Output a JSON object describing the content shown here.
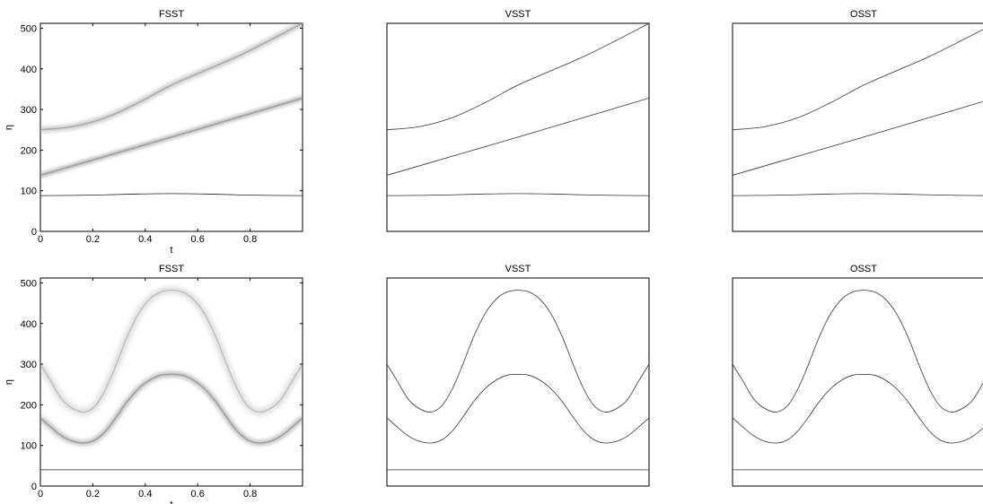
{
  "chart_data": [
    {
      "type": "line",
      "title": "FSST",
      "xlabel": "t",
      "ylabel": "η",
      "xlim": [
        0,
        1
      ],
      "ylim": [
        0,
        512
      ],
      "xticks": [
        "0",
        "0.2",
        "0.4",
        "0.6",
        "0.8"
      ],
      "yticks": [
        "0",
        "100",
        "200",
        "300",
        "400",
        "500"
      ],
      "show_x_ticks": true,
      "show_y_ticks": true,
      "grid": false,
      "series": [
        {
          "x": [
            0,
            0.125,
            0.25,
            0.375,
            0.5,
            0.625,
            0.75,
            0.875,
            1.0
          ],
          "y": [
            250,
            258,
            280,
            317,
            360,
            395,
            430,
            470,
            512
          ],
          "tone": "#9a9a9a",
          "blur": 2.2,
          "width": 1.4
        },
        {
          "x": [
            0,
            0.25,
            0.5,
            0.75,
            1.0
          ],
          "y": [
            138,
            185,
            232,
            280,
            328
          ],
          "tone": "#8f8f8f",
          "blur": 1.6,
          "width": 1.4
        },
        {
          "x": [
            0,
            0.125,
            0.25,
            0.375,
            0.5,
            0.625,
            0.75,
            0.875,
            1.0
          ],
          "y": [
            88,
            88.5,
            90,
            92,
            93,
            92,
            90,
            88.5,
            88
          ],
          "tone": "#202020",
          "blur": 0,
          "width": 0.8
        }
      ]
    },
    {
      "type": "line",
      "title": "VSST",
      "xlabel": "",
      "ylabel": "",
      "xlim": [
        0,
        1
      ],
      "ylim": [
        0,
        512
      ],
      "xticks": [],
      "yticks": [],
      "show_x_ticks": false,
      "show_y_ticks": false,
      "grid": false,
      "series": [
        {
          "x": [
            0,
            0.125,
            0.25,
            0.375,
            0.5,
            0.625,
            0.75,
            0.875,
            1.0
          ],
          "y": [
            250,
            258,
            280,
            317,
            360,
            395,
            430,
            470,
            512
          ],
          "tone": "#333333",
          "blur": 0,
          "width": 0.8
        },
        {
          "x": [
            0,
            0.25,
            0.5,
            0.75,
            1.0
          ],
          "y": [
            138,
            185,
            232,
            280,
            328
          ],
          "tone": "#333333",
          "blur": 0,
          "width": 0.8
        },
        {
          "x": [
            0,
            0.125,
            0.25,
            0.375,
            0.5,
            0.625,
            0.75,
            0.875,
            1.0
          ],
          "y": [
            88,
            88.5,
            90,
            92,
            93,
            92,
            90,
            88.5,
            88
          ],
          "tone": "#333333",
          "blur": 0,
          "width": 0.8
        }
      ]
    },
    {
      "type": "line",
      "title": "OSST",
      "xlabel": "",
      "ylabel": "",
      "xlim": [
        0,
        1
      ],
      "ylim": [
        0,
        512
      ],
      "xticks": [],
      "yticks": [],
      "show_x_ticks": false,
      "show_y_ticks": false,
      "grid": false,
      "series": [
        {
          "x": [
            0,
            0.125,
            0.25,
            0.375,
            0.5,
            0.625,
            0.75,
            0.875,
            1.0
          ],
          "y": [
            250,
            258,
            280,
            317,
            360,
            395,
            430,
            470,
            512
          ],
          "tone": "#333333",
          "blur": 0,
          "width": 0.8
        },
        {
          "x": [
            0,
            0.25,
            0.5,
            0.75,
            1.0
          ],
          "y": [
            138,
            185,
            232,
            280,
            328
          ],
          "tone": "#333333",
          "blur": 0,
          "width": 0.8
        },
        {
          "x": [
            0,
            0.125,
            0.25,
            0.375,
            0.5,
            0.625,
            0.75,
            0.875,
            1.0
          ],
          "y": [
            88,
            88.5,
            90,
            92,
            93,
            92,
            90,
            88.5,
            88
          ],
          "tone": "#333333",
          "blur": 0,
          "width": 0.8
        }
      ]
    },
    {
      "type": "line",
      "title": "FSST",
      "xlabel": "t",
      "ylabel": "η",
      "xlim": [
        0,
        1
      ],
      "ylim": [
        0,
        512
      ],
      "xticks": [
        "0",
        "0.2",
        "0.4",
        "0.6",
        "0.8"
      ],
      "yticks": [
        "0",
        "100",
        "200",
        "300",
        "400",
        "500"
      ],
      "show_x_ticks": true,
      "show_y_ticks": true,
      "grid": false,
      "series": [
        {
          "x": [
            0,
            0.04,
            0.08,
            0.12,
            0.167,
            0.21,
            0.25,
            0.29,
            0.33,
            0.375,
            0.42,
            0.46,
            0.5,
            0.54,
            0.58,
            0.625,
            0.67,
            0.71,
            0.75,
            0.79,
            0.833,
            0.88,
            0.92,
            0.96,
            1.0
          ],
          "y": [
            300,
            258,
            215,
            192,
            182,
            198,
            240,
            300,
            366,
            425,
            462,
            478,
            482,
            478,
            462,
            425,
            366,
            300,
            240,
            198,
            182,
            192,
            215,
            258,
            300
          ],
          "tone": "#b0b0b0",
          "blur": 3.2,
          "width": 1.4
        },
        {
          "x": [
            0,
            0.04,
            0.08,
            0.12,
            0.167,
            0.21,
            0.25,
            0.29,
            0.33,
            0.375,
            0.42,
            0.46,
            0.5,
            0.54,
            0.58,
            0.625,
            0.67,
            0.71,
            0.75,
            0.79,
            0.833,
            0.88,
            0.92,
            0.96,
            1.0
          ],
          "y": [
            168,
            145,
            124,
            111,
            106,
            114,
            136,
            170,
            207,
            240,
            262,
            273,
            275,
            273,
            262,
            240,
            207,
            170,
            136,
            114,
            106,
            111,
            124,
            145,
            168
          ],
          "tone": "#8a8a8a",
          "blur": 2.2,
          "width": 1.4
        },
        {
          "x": [
            0,
            0.25,
            0.5,
            0.75,
            1.0
          ],
          "y": [
            40,
            40,
            40,
            40,
            40
          ],
          "tone": "#202020",
          "blur": 0,
          "width": 0.8
        }
      ]
    },
    {
      "type": "line",
      "title": "VSST",
      "xlabel": "",
      "ylabel": "",
      "xlim": [
        0,
        1
      ],
      "ylim": [
        0,
        512
      ],
      "xticks": [],
      "yticks": [],
      "show_x_ticks": false,
      "show_y_ticks": false,
      "grid": false,
      "series": [
        {
          "x": [
            0,
            0.04,
            0.08,
            0.12,
            0.167,
            0.21,
            0.25,
            0.29,
            0.33,
            0.375,
            0.42,
            0.46,
            0.5,
            0.54,
            0.58,
            0.625,
            0.67,
            0.71,
            0.75,
            0.79,
            0.833,
            0.88,
            0.92,
            0.96,
            1.0
          ],
          "y": [
            300,
            258,
            215,
            192,
            182,
            198,
            240,
            300,
            366,
            425,
            462,
            478,
            482,
            478,
            462,
            425,
            366,
            300,
            240,
            198,
            182,
            192,
            215,
            258,
            300
          ],
          "tone": "#333333",
          "blur": 0,
          "width": 0.8
        },
        {
          "x": [
            0,
            0.04,
            0.08,
            0.12,
            0.167,
            0.21,
            0.25,
            0.29,
            0.33,
            0.375,
            0.42,
            0.46,
            0.5,
            0.54,
            0.58,
            0.625,
            0.67,
            0.71,
            0.75,
            0.79,
            0.833,
            0.88,
            0.92,
            0.96,
            1.0
          ],
          "y": [
            168,
            145,
            124,
            111,
            106,
            114,
            136,
            170,
            207,
            240,
            262,
            273,
            275,
            273,
            262,
            240,
            207,
            170,
            136,
            114,
            106,
            111,
            124,
            145,
            168
          ],
          "tone": "#333333",
          "blur": 0,
          "width": 0.8
        },
        {
          "x": [
            0,
            0.25,
            0.5,
            0.75,
            1.0
          ],
          "y": [
            40,
            40,
            40,
            40,
            40
          ],
          "tone": "#333333",
          "blur": 0,
          "width": 0.8
        }
      ]
    },
    {
      "type": "line",
      "title": "OSST",
      "xlabel": "",
      "ylabel": "",
      "xlim": [
        0,
        1
      ],
      "ylim": [
        0,
        512
      ],
      "xticks": [],
      "yticks": [],
      "show_x_ticks": false,
      "show_y_ticks": false,
      "grid": false,
      "series": [
        {
          "x": [
            0,
            0.04,
            0.08,
            0.12,
            0.167,
            0.21,
            0.25,
            0.29,
            0.33,
            0.375,
            0.42,
            0.46,
            0.5,
            0.54,
            0.58,
            0.625,
            0.67,
            0.71,
            0.75,
            0.79,
            0.833,
            0.88,
            0.92,
            0.96,
            1.0
          ],
          "y": [
            300,
            258,
            215,
            192,
            182,
            198,
            240,
            300,
            366,
            425,
            462,
            478,
            482,
            478,
            462,
            425,
            366,
            300,
            240,
            198,
            182,
            192,
            215,
            258,
            300
          ],
          "tone": "#333333",
          "blur": 0,
          "width": 0.8
        },
        {
          "x": [
            0,
            0.04,
            0.08,
            0.12,
            0.167,
            0.21,
            0.25,
            0.29,
            0.33,
            0.375,
            0.42,
            0.46,
            0.5,
            0.54,
            0.58,
            0.625,
            0.67,
            0.71,
            0.75,
            0.79,
            0.833,
            0.88,
            0.92,
            0.96,
            1.0
          ],
          "y": [
            168,
            145,
            124,
            111,
            106,
            114,
            136,
            170,
            207,
            240,
            262,
            273,
            275,
            273,
            262,
            240,
            207,
            170,
            136,
            114,
            106,
            111,
            124,
            145,
            168
          ],
          "tone": "#333333",
          "blur": 0,
          "width": 0.8
        },
        {
          "x": [
            0,
            0.25,
            0.5,
            0.75,
            1.0
          ],
          "y": [
            40,
            40,
            40,
            40,
            40
          ],
          "tone": "#333333",
          "blur": 0,
          "width": 0.8
        }
      ]
    }
  ]
}
